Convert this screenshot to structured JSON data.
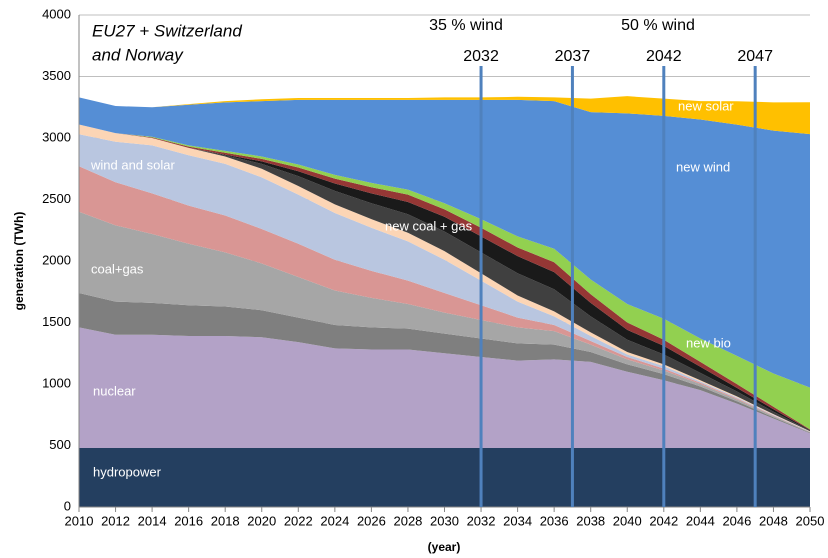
{
  "chart_data": {
    "type": "stacked_area",
    "title": [
      "EU27 + Switzerland",
      "and Norway"
    ],
    "xlabel": "(year)",
    "ylabel": "generation (TWh)",
    "annotations": [
      "35 % wind",
      "50 % wind"
    ],
    "x": [
      2010,
      2012,
      2014,
      2016,
      2018,
      2020,
      2022,
      2024,
      2026,
      2028,
      2030,
      2032,
      2034,
      2036,
      2038,
      2040,
      2042,
      2044,
      2046,
      2048,
      2050
    ],
    "xlim": [
      2010,
      2050
    ],
    "xticks": [
      2010,
      2012,
      2014,
      2016,
      2018,
      2020,
      2022,
      2024,
      2026,
      2028,
      2030,
      2032,
      2034,
      2036,
      2038,
      2040,
      2042,
      2044,
      2046,
      2048,
      2050
    ],
    "ylim": [
      0,
      4000
    ],
    "yticks": [
      0,
      500,
      1000,
      1500,
      2000,
      2500,
      3000,
      3500,
      4000
    ],
    "grid": true,
    "vlines": [
      2032,
      2037,
      2042,
      2047
    ],
    "vline_color": "#4f81bd",
    "series": [
      {
        "name": "hydropower",
        "color": "#243f60",
        "values": [
          480,
          480,
          480,
          480,
          480,
          480,
          480,
          480,
          480,
          480,
          480,
          480,
          480,
          480,
          480,
          480,
          480,
          480,
          480,
          480,
          480
        ]
      },
      {
        "name": "nuclear",
        "color": "#b3a2c7",
        "values": [
          980,
          920,
          920,
          910,
          910,
          900,
          860,
          810,
          800,
          800,
          770,
          740,
          710,
          720,
          700,
          620,
          550,
          470,
          360,
          240,
          120
        ]
      },
      {
        "color": "#7f7f7f",
        "values": [
          280,
          270,
          260,
          250,
          240,
          220,
          200,
          190,
          180,
          170,
          160,
          150,
          140,
          120,
          80,
          60,
          50,
          30,
          20,
          10,
          5
        ]
      },
      {
        "name": "coal+gas",
        "color": "#a6a6a6",
        "values": [
          660,
          620,
          560,
          500,
          440,
          380,
          330,
          280,
          240,
          200,
          170,
          150,
          130,
          110,
          60,
          40,
          30,
          20,
          15,
          10,
          5
        ]
      },
      {
        "color": "#d99694",
        "values": [
          370,
          350,
          330,
          310,
          300,
          280,
          270,
          250,
          220,
          190,
          160,
          120,
          80,
          50,
          30,
          20,
          15,
          10,
          8,
          5,
          2
        ]
      },
      {
        "name": "wind and solar",
        "color": "#b9c6e0",
        "values": [
          260,
          330,
          390,
          410,
          420,
          420,
          400,
          380,
          350,
          320,
          270,
          200,
          130,
          70,
          40,
          20,
          20,
          10,
          8,
          5,
          2
        ]
      },
      {
        "color": "#fcd5b5",
        "values": [
          80,
          70,
          60,
          60,
          60,
          70,
          70,
          70,
          70,
          70,
          70,
          60,
          50,
          40,
          30,
          20,
          15,
          10,
          8,
          5,
          2
        ]
      },
      {
        "name": "new coal + gas",
        "color": "#404040",
        "values": [
          0,
          0,
          0,
          0,
          10,
          40,
          80,
          110,
          130,
          150,
          160,
          170,
          180,
          180,
          130,
          100,
          80,
          60,
          40,
          20,
          5
        ]
      },
      {
        "color": "#1a1a1a",
        "values": [
          0,
          0,
          0,
          0,
          5,
          20,
          40,
          60,
          80,
          100,
          120,
          130,
          140,
          140,
          110,
          80,
          70,
          50,
          30,
          20,
          5
        ]
      },
      {
        "color": "#953735",
        "values": [
          0,
          0,
          5,
          10,
          15,
          20,
          30,
          40,
          50,
          60,
          60,
          70,
          70,
          80,
          70,
          60,
          50,
          40,
          30,
          20,
          5
        ]
      },
      {
        "name": "new bio",
        "color": "#92d050",
        "values": [
          0,
          0,
          5,
          10,
          15,
          20,
          25,
          30,
          35,
          40,
          50,
          70,
          90,
          110,
          120,
          150,
          170,
          190,
          230,
          270,
          340
        ]
      },
      {
        "name": "new wind",
        "color": "#558ed5",
        "values": [
          220,
          220,
          240,
          330,
          395,
          450,
          525,
          610,
          675,
          730,
          840,
          970,
          1110,
          1200,
          1360,
          1550,
          1650,
          1780,
          1880,
          1975,
          2060
        ]
      },
      {
        "name": "new solar",
        "color": "#ffc000",
        "values": [
          0,
          0,
          0,
          5,
          10,
          15,
          15,
          15,
          15,
          15,
          20,
          20,
          25,
          30,
          110,
          140,
          140,
          150,
          190,
          230,
          260
        ]
      }
    ]
  }
}
